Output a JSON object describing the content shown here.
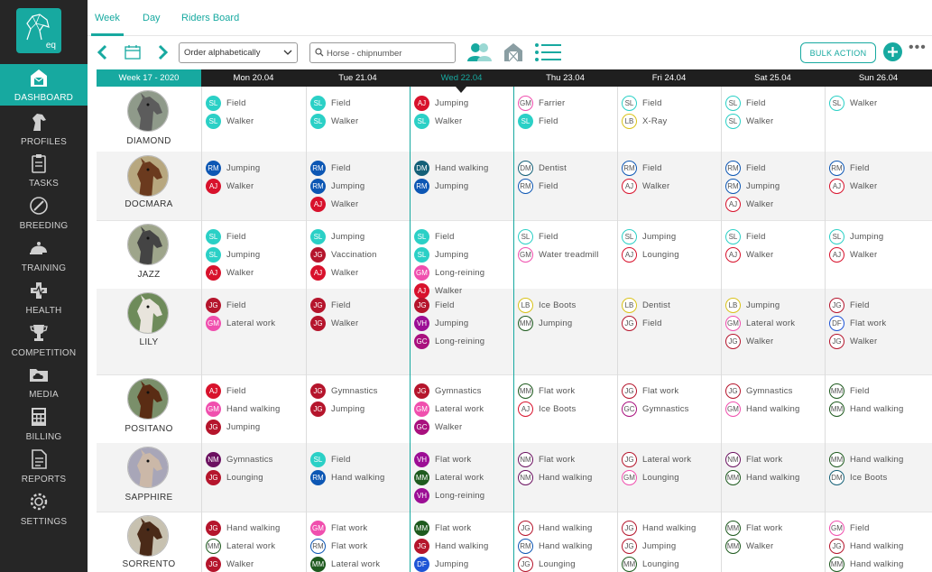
{
  "app": {
    "logo_text": "eq"
  },
  "sidebar": {
    "items": [
      {
        "label": "DASHBOARD",
        "icon": "barn-icon",
        "active": true
      },
      {
        "label": "PROFILES",
        "icon": "horse-head-icon"
      },
      {
        "label": "TASKS",
        "icon": "clipboard-icon"
      },
      {
        "label": "BREEDING",
        "icon": "syringe-icon"
      },
      {
        "label": "TRAINING",
        "icon": "riding-helmet-icon"
      },
      {
        "label": "HEALTH",
        "icon": "health-cross-icon"
      },
      {
        "label": "COMPETITION",
        "icon": "trophy-icon"
      },
      {
        "label": "MEDIA",
        "icon": "folder-cloud-icon"
      },
      {
        "label": "BILLING",
        "icon": "calculator-icon"
      },
      {
        "label": "REPORTS",
        "icon": "report-icon"
      },
      {
        "label": "SETTINGS",
        "icon": "gear-icon"
      }
    ]
  },
  "tabs": [
    {
      "label": "Week",
      "active": true
    },
    {
      "label": "Day"
    },
    {
      "label": "Riders Board"
    }
  ],
  "toolbar": {
    "order_value": "Order alphabetically",
    "search_placeholder": "Horse - chipnumber",
    "bulk_label": "BULK ACTION"
  },
  "colors": {
    "accent": "#17a9a0",
    "SL": {
      "color": "#2bd0c6",
      "style": "filled"
    },
    "AJ": {
      "color": "#d8122c",
      "style": "filled"
    },
    "RM": {
      "color": "#0d57b4",
      "style": "filled"
    },
    "DM": {
      "color": "#146078",
      "style": "filled"
    },
    "JG": {
      "color": "#b5152c",
      "style": "filled"
    },
    "GM": {
      "color": "#f04fae",
      "style": "filled"
    },
    "VH": {
      "color": "#9c0e95",
      "style": "filled"
    },
    "GC": {
      "color": "#a9107e",
      "style": "filled"
    },
    "NM": {
      "color": "#6b1060",
      "style": "filled"
    },
    "MM": {
      "color": "#1e5a1e",
      "style": "filled"
    },
    "DF": {
      "color": "#1f55d6",
      "style": "filled"
    }
  },
  "outline_colors": {
    "SL": "#2bd0c6",
    "AJ": "#d8122c",
    "RM": "#0d57b4",
    "GM": "#f04fae",
    "LB": "#d9c21a",
    "DM": "#146078",
    "JG": "#b5152c",
    "MM": "#1e5a1e",
    "NM": "#6b1060",
    "DF": "#1f55d6",
    "GC": "#a9107e"
  },
  "calendar": {
    "week_label": "Week 17 - 2020",
    "days": [
      "Mon 20.04",
      "Tue 21.04",
      "Wed 22.04",
      "Thu 23.04",
      "Fri 24.04",
      "Sat 25.04",
      "Sun 26.04"
    ],
    "today_index": 2,
    "rows": [
      {
        "horse": "DIAMOND",
        "cells": [
          [
            [
              "SL",
              "Field",
              1
            ],
            [
              "SL",
              "Walker",
              1
            ]
          ],
          [
            [
              "SL",
              "Field",
              1
            ],
            [
              "SL",
              "Walker",
              1
            ]
          ],
          [
            [
              "AJ",
              "Jumping",
              1
            ],
            [
              "SL",
              "Walker",
              1
            ]
          ],
          [
            [
              "GM",
              "Farrier",
              0
            ],
            [
              "SL",
              "Field",
              1
            ]
          ],
          [
            [
              "SL",
              "Field",
              0
            ],
            [
              "LB",
              "X-Ray",
              0
            ]
          ],
          [
            [
              "SL",
              "Field",
              0
            ],
            [
              "SL",
              "Walker",
              0
            ]
          ],
          [
            [
              "SL",
              "Walker",
              0
            ]
          ]
        ]
      },
      {
        "horse": "DOCMARA",
        "cells": [
          [
            [
              "RM",
              "Jumping",
              1
            ],
            [
              "AJ",
              "Walker",
              1
            ]
          ],
          [
            [
              "RM",
              "Field",
              1
            ],
            [
              "RM",
              "Jumping",
              1
            ],
            [
              "AJ",
              "Walker",
              1
            ]
          ],
          [
            [
              "DM",
              "Hand walking",
              1
            ],
            [
              "RM",
              "Jumping",
              1
            ]
          ],
          [
            [
              "DM",
              "Dentist",
              0
            ],
            [
              "RM",
              "Field",
              0
            ]
          ],
          [
            [
              "RM",
              "Field",
              0
            ],
            [
              "AJ",
              "Walker",
              0
            ]
          ],
          [
            [
              "RM",
              "Field",
              0
            ],
            [
              "RM",
              "Jumping",
              0
            ],
            [
              "AJ",
              "Walker",
              0
            ]
          ],
          [
            [
              "RM",
              "Field",
              0
            ],
            [
              "AJ",
              "Walker",
              0
            ]
          ]
        ]
      },
      {
        "horse": "JAZZ",
        "cells": [
          [
            [
              "SL",
              "Field",
              1
            ],
            [
              "SL",
              "Jumping",
              1
            ],
            [
              "AJ",
              "Walker",
              1
            ]
          ],
          [
            [
              "SL",
              "Jumping",
              1
            ],
            [
              "JG",
              "Vaccination",
              1
            ],
            [
              "AJ",
              "Walker",
              1
            ]
          ],
          [
            [
              "SL",
              "Field",
              1
            ],
            [
              "SL",
              "Jumping",
              1
            ],
            [
              "GM",
              "Long-reining",
              1
            ],
            [
              "AJ",
              "Walker",
              1
            ]
          ],
          [
            [
              "SL",
              "Field",
              0
            ],
            [
              "GM",
              "Water treadmill",
              0
            ]
          ],
          [
            [
              "SL",
              "Jumping",
              0
            ],
            [
              "AJ",
              "Lounging",
              0
            ]
          ],
          [
            [
              "SL",
              "Field",
              0
            ],
            [
              "AJ",
              "Walker",
              0
            ]
          ],
          [
            [
              "SL",
              "Jumping",
              0
            ],
            [
              "AJ",
              "Walker",
              0
            ]
          ]
        ]
      },
      {
        "horse": "LILY",
        "cells": [
          [
            [
              "JG",
              "Field",
              1
            ],
            [
              "GM",
              "Lateral work",
              1
            ]
          ],
          [
            [
              "JG",
              "Field",
              1
            ],
            [
              "JG",
              "Walker",
              1
            ]
          ],
          [
            [
              "JG",
              "Field",
              1
            ],
            [
              "VH",
              "Jumping",
              1
            ],
            [
              "GC",
              "Long-reining",
              1
            ]
          ],
          [
            [
              "LB",
              "Ice Boots",
              0
            ],
            [
              "MM",
              "Jumping",
              0
            ]
          ],
          [
            [
              "LB",
              "Dentist",
              0
            ],
            [
              "JG",
              "Field",
              0
            ]
          ],
          [
            [
              "LB",
              "Jumping",
              0
            ],
            [
              "GM",
              "Lateral work",
              0
            ],
            [
              "JG",
              "Walker",
              0
            ]
          ],
          [
            [
              "JG",
              "Field",
              0
            ],
            [
              "DF",
              "Flat work",
              0
            ],
            [
              "JG",
              "Walker",
              0
            ]
          ]
        ]
      },
      {
        "horse": "POSITANO",
        "cells": [
          [
            [
              "AJ",
              "Field",
              1
            ],
            [
              "GM",
              "Hand walking",
              1
            ],
            [
              "JG",
              "Jumping",
              1
            ]
          ],
          [
            [
              "JG",
              "Gymnastics",
              1
            ],
            [
              "JG",
              "Jumping",
              1
            ]
          ],
          [
            [
              "JG",
              "Gymnastics",
              1
            ],
            [
              "GM",
              "Lateral work",
              1
            ],
            [
              "GC",
              "Walker",
              1
            ]
          ],
          [
            [
              "MM",
              "Flat work",
              0
            ],
            [
              "AJ",
              "Ice Boots",
              0
            ]
          ],
          [
            [
              "JG",
              "Flat work",
              0
            ],
            [
              "GC",
              "Gymnastics",
              0
            ]
          ],
          [
            [
              "JG",
              "Gymnastics",
              0
            ],
            [
              "GM",
              "Hand walking",
              0
            ]
          ],
          [
            [
              "MM",
              "Field",
              0
            ],
            [
              "MM",
              "Hand walking",
              0
            ]
          ]
        ]
      },
      {
        "horse": "SAPPHIRE",
        "cells": [
          [
            [
              "NM",
              "Gymnastics",
              1
            ],
            [
              "JG",
              "Lounging",
              1
            ]
          ],
          [
            [
              "SL",
              "Field",
              1
            ],
            [
              "RM",
              "Hand walking",
              1
            ]
          ],
          [
            [
              "VH",
              "Flat work",
              1
            ],
            [
              "MM",
              "Lateral work",
              1
            ],
            [
              "VH",
              "Long-reining",
              1
            ]
          ],
          [
            [
              "NM",
              "Flat work",
              0
            ],
            [
              "NM",
              "Hand walking",
              0
            ]
          ],
          [
            [
              "JG",
              "Lateral work",
              0
            ],
            [
              "GM",
              "Lounging",
              0
            ]
          ],
          [
            [
              "NM",
              "Flat work",
              0
            ],
            [
              "MM",
              "Hand walking",
              0
            ]
          ],
          [
            [
              "MM",
              "Hand walking",
              0
            ],
            [
              "DM",
              "Ice Boots",
              0
            ]
          ]
        ]
      },
      {
        "horse": "SORRENTO",
        "cells": [
          [
            [
              "JG",
              "Hand walking",
              1
            ],
            [
              "MM",
              "Lateral work",
              0
            ],
            [
              "JG",
              "Walker",
              1
            ]
          ],
          [
            [
              "GM",
              "Flat work",
              1
            ],
            [
              "RM",
              "Flat work",
              0
            ],
            [
              "MM",
              "Lateral work",
              1
            ]
          ],
          [
            [
              "MM",
              "Flat work",
              1
            ],
            [
              "JG",
              "Hand walking",
              1
            ],
            [
              "DF",
              "Jumping",
              1
            ]
          ],
          [
            [
              "JG",
              "Hand walking",
              0
            ],
            [
              "RM",
              "Hand walking",
              0
            ],
            [
              "JG",
              "Lounging",
              0
            ]
          ],
          [
            [
              "JG",
              "Hand walking",
              0
            ],
            [
              "JG",
              "Jumping",
              0
            ],
            [
              "MM",
              "Lounging",
              0
            ]
          ],
          [
            [
              "MM",
              "Flat work",
              0
            ],
            [
              "MM",
              "Walker",
              0
            ]
          ],
          [
            [
              "GM",
              "Field",
              0
            ],
            [
              "JG",
              "Hand walking",
              0
            ],
            [
              "MM",
              "Hand walking",
              0
            ]
          ]
        ]
      }
    ]
  }
}
